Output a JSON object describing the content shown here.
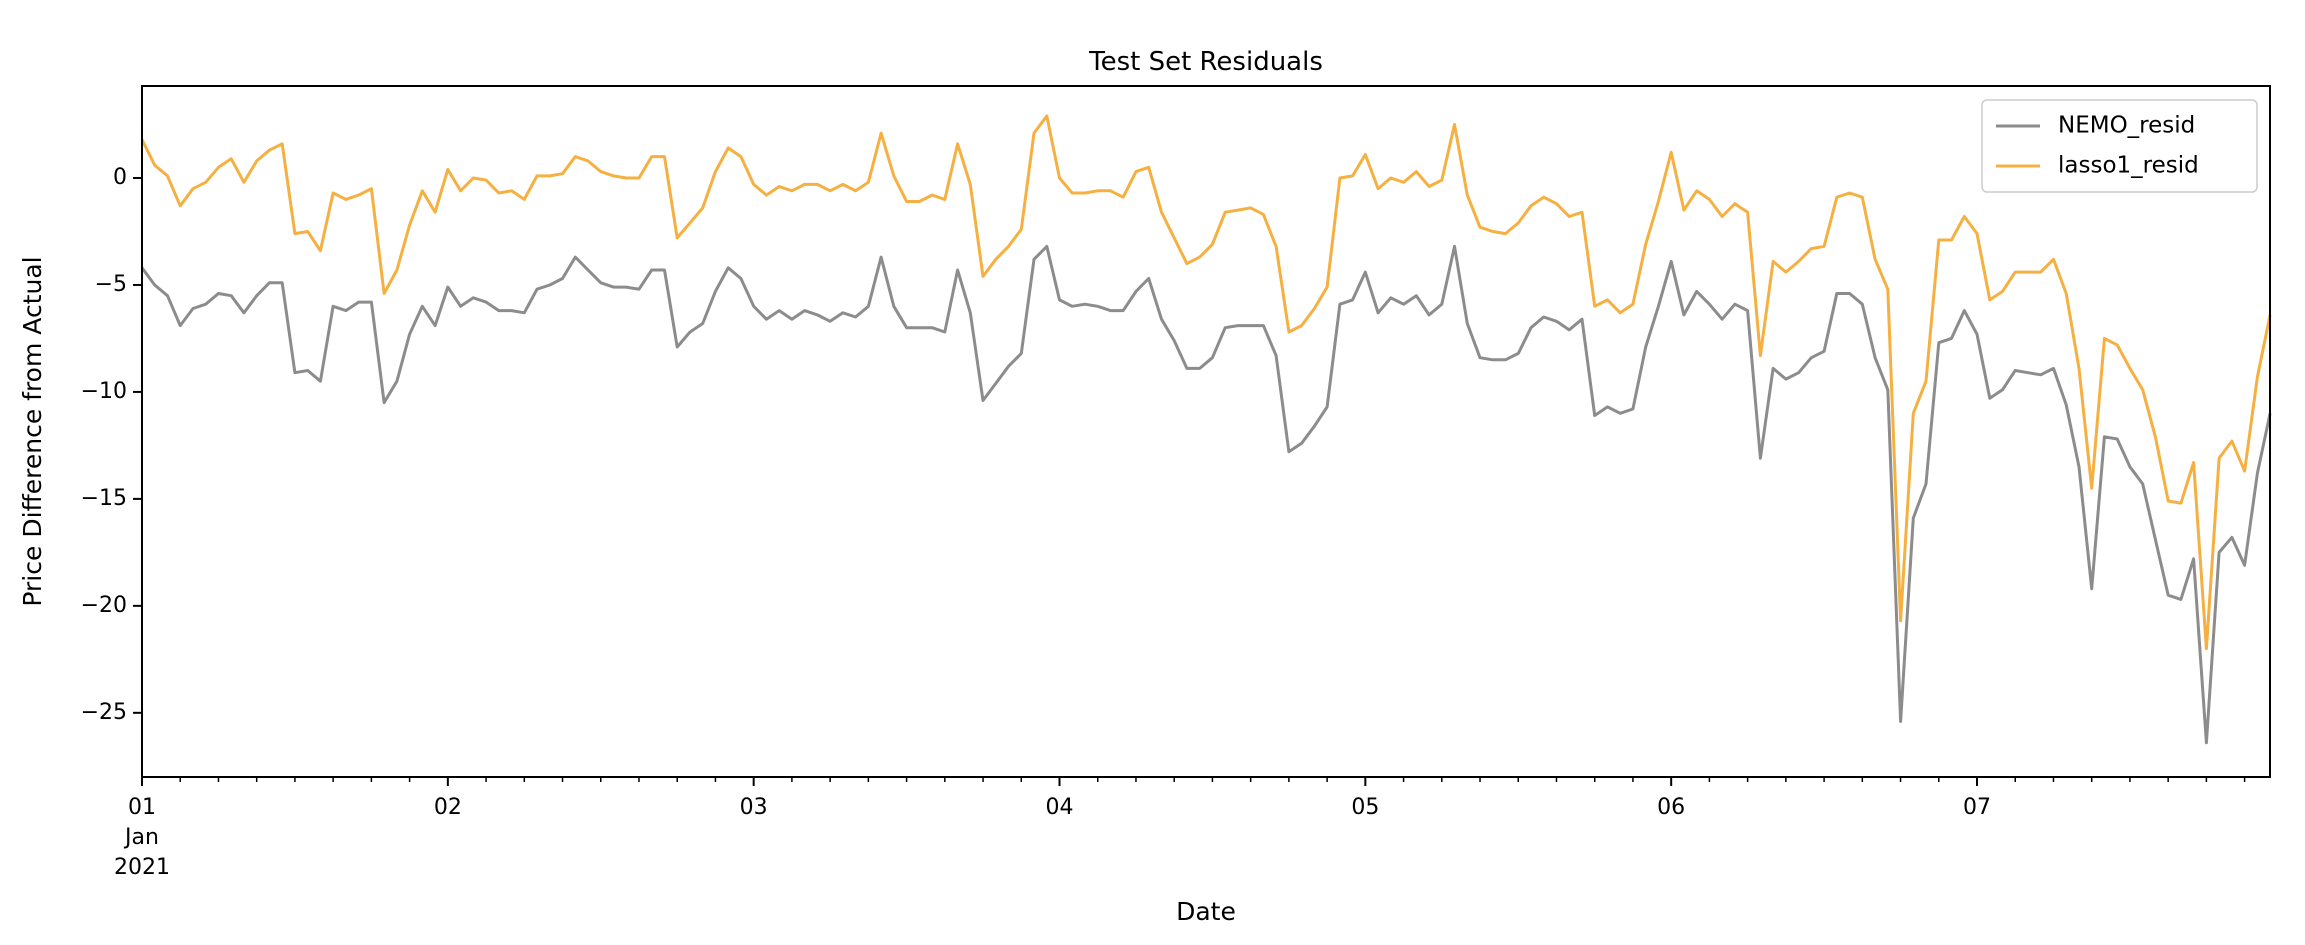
{
  "chart_data": {
    "type": "line",
    "title": "Test Set Residuals",
    "xlabel": "Date",
    "ylabel": "Price Difference from Actual",
    "x_start": "2021-01-01",
    "x_step_hours": 1,
    "xlim_days": [
      0,
      6.958
    ],
    "ylim": [
      -28,
      4.3
    ],
    "y_ticks": [
      0,
      -5,
      -10,
      -15,
      -20,
      -25
    ],
    "x_ticks": [
      {
        "day": 0,
        "label": "01",
        "sub": [
          "Jan",
          "2021"
        ]
      },
      {
        "day": 1,
        "label": "02"
      },
      {
        "day": 2,
        "label": "03"
      },
      {
        "day": 3,
        "label": "04"
      },
      {
        "day": 4,
        "label": "05"
      },
      {
        "day": 5,
        "label": "06"
      },
      {
        "day": 6,
        "label": "07"
      }
    ],
    "grid": false,
    "legend_position": "top-right",
    "series": [
      {
        "name": "NEMO_resid",
        "color": "#8c8c8c",
        "values": [
          -4.2,
          -5.0,
          -5.5,
          -6.9,
          -6.1,
          -5.9,
          -5.4,
          -5.5,
          -6.3,
          -5.5,
          -4.9,
          -4.9,
          -9.1,
          -9.0,
          -9.5,
          -6.0,
          -6.2,
          -5.8,
          -5.8,
          -10.5,
          -9.5,
          -7.3,
          -6.0,
          -6.9,
          -5.1,
          -6.0,
          -5.6,
          -5.8,
          -6.2,
          -6.2,
          -6.3,
          -5.2,
          -5.0,
          -4.7,
          -3.7,
          -4.3,
          -4.9,
          -5.1,
          -5.1,
          -5.2,
          -4.3,
          -4.3,
          -7.9,
          -7.2,
          -6.8,
          -5.3,
          -4.2,
          -4.7,
          -6.0,
          -6.6,
          -6.2,
          -6.6,
          -6.2,
          -6.4,
          -6.7,
          -6.3,
          -6.5,
          -6.0,
          -3.7,
          -6.0,
          -7.0,
          -7.0,
          -7.0,
          -7.2,
          -4.3,
          -6.3,
          -10.4,
          -9.6,
          -8.8,
          -8.2,
          -3.8,
          -3.2,
          -5.7,
          -6.0,
          -5.9,
          -6.0,
          -6.2,
          -6.2,
          -5.3,
          -4.7,
          -6.6,
          -7.6,
          -8.9,
          -8.9,
          -8.4,
          -7.0,
          -6.9,
          -6.9,
          -6.9,
          -8.3,
          -12.8,
          -12.4,
          -11.6,
          -10.7,
          -5.9,
          -5.7,
          -4.4,
          -6.3,
          -5.6,
          -5.9,
          -5.5,
          -6.4,
          -5.9,
          -3.2,
          -6.8,
          -8.4,
          -8.5,
          -8.5,
          -8.2,
          -7.0,
          -6.5,
          -6.7,
          -7.1,
          -6.6,
          -11.1,
          -10.7,
          -11.0,
          -10.8,
          -7.9,
          -6.0,
          -3.9,
          -6.4,
          -5.3,
          -5.9,
          -6.6,
          -5.9,
          -6.2,
          -13.1,
          -8.9,
          -9.4,
          -9.1,
          -8.4,
          -8.1,
          -5.4,
          -5.4,
          -5.9,
          -8.4,
          -9.9,
          -25.4,
          -15.9,
          -14.3,
          -7.7,
          -7.5,
          -6.2,
          -7.3,
          -10.3,
          -9.9,
          -9.0,
          -9.1,
          -9.2,
          -8.9,
          -10.6,
          -13.5,
          -19.2,
          -12.1,
          -12.2,
          -13.5,
          -14.3,
          -16.9,
          -19.5,
          -19.7,
          -17.8,
          -26.4,
          -17.5,
          -16.8,
          -18.1,
          -13.8,
          -11.0
        ]
      },
      {
        "name": "lasso1_resid",
        "color": "#f5b041",
        "values": [
          1.8,
          0.6,
          0.1,
          -1.3,
          -0.5,
          -0.2,
          0.5,
          0.9,
          -0.2,
          0.8,
          1.3,
          1.6,
          -2.6,
          -2.5,
          -3.4,
          -0.7,
          -1.0,
          -0.8,
          -0.5,
          -5.4,
          -4.3,
          -2.2,
          -0.6,
          -1.6,
          0.4,
          -0.6,
          0.0,
          -0.1,
          -0.7,
          -0.6,
          -1.0,
          0.1,
          0.1,
          0.2,
          1.0,
          0.8,
          0.3,
          0.1,
          0.0,
          0.0,
          1.0,
          1.0,
          -2.8,
          -2.1,
          -1.4,
          0.3,
          1.4,
          1.0,
          -0.3,
          -0.8,
          -0.4,
          -0.6,
          -0.3,
          -0.3,
          -0.6,
          -0.3,
          -0.6,
          -0.2,
          2.1,
          0.1,
          -1.1,
          -1.1,
          -0.8,
          -1.0,
          1.6,
          -0.3,
          -4.6,
          -3.8,
          -3.2,
          -2.4,
          2.1,
          2.9,
          0.0,
          -0.7,
          -0.7,
          -0.6,
          -0.6,
          -0.9,
          0.3,
          0.5,
          -1.6,
          -2.8,
          -4.0,
          -3.7,
          -3.1,
          -1.6,
          -1.5,
          -1.4,
          -1.7,
          -3.2,
          -7.2,
          -6.9,
          -6.1,
          -5.1,
          0.0,
          0.1,
          1.1,
          -0.5,
          0.0,
          -0.2,
          0.3,
          -0.4,
          -0.1,
          2.5,
          -0.8,
          -2.3,
          -2.5,
          -2.6,
          -2.1,
          -1.3,
          -0.9,
          -1.2,
          -1.8,
          -1.6,
          -6.0,
          -5.7,
          -6.3,
          -5.9,
          -3.1,
          -1.1,
          1.2,
          -1.5,
          -0.6,
          -1.0,
          -1.8,
          -1.2,
          -1.6,
          -8.3,
          -3.9,
          -4.4,
          -3.9,
          -3.3,
          -3.2,
          -0.9,
          -0.7,
          -0.9,
          -3.8,
          -5.2,
          -20.7,
          -11.0,
          -9.5,
          -2.9,
          -2.9,
          -1.8,
          -2.6,
          -5.7,
          -5.3,
          -4.4,
          -4.4,
          -4.4,
          -3.8,
          -5.4,
          -8.9,
          -14.5,
          -7.5,
          -7.8,
          -8.9,
          -9.9,
          -12.1,
          -15.1,
          -15.2,
          -13.3,
          -22.0,
          -13.1,
          -12.3,
          -13.7,
          -9.3,
          -6.4
        ]
      }
    ]
  }
}
